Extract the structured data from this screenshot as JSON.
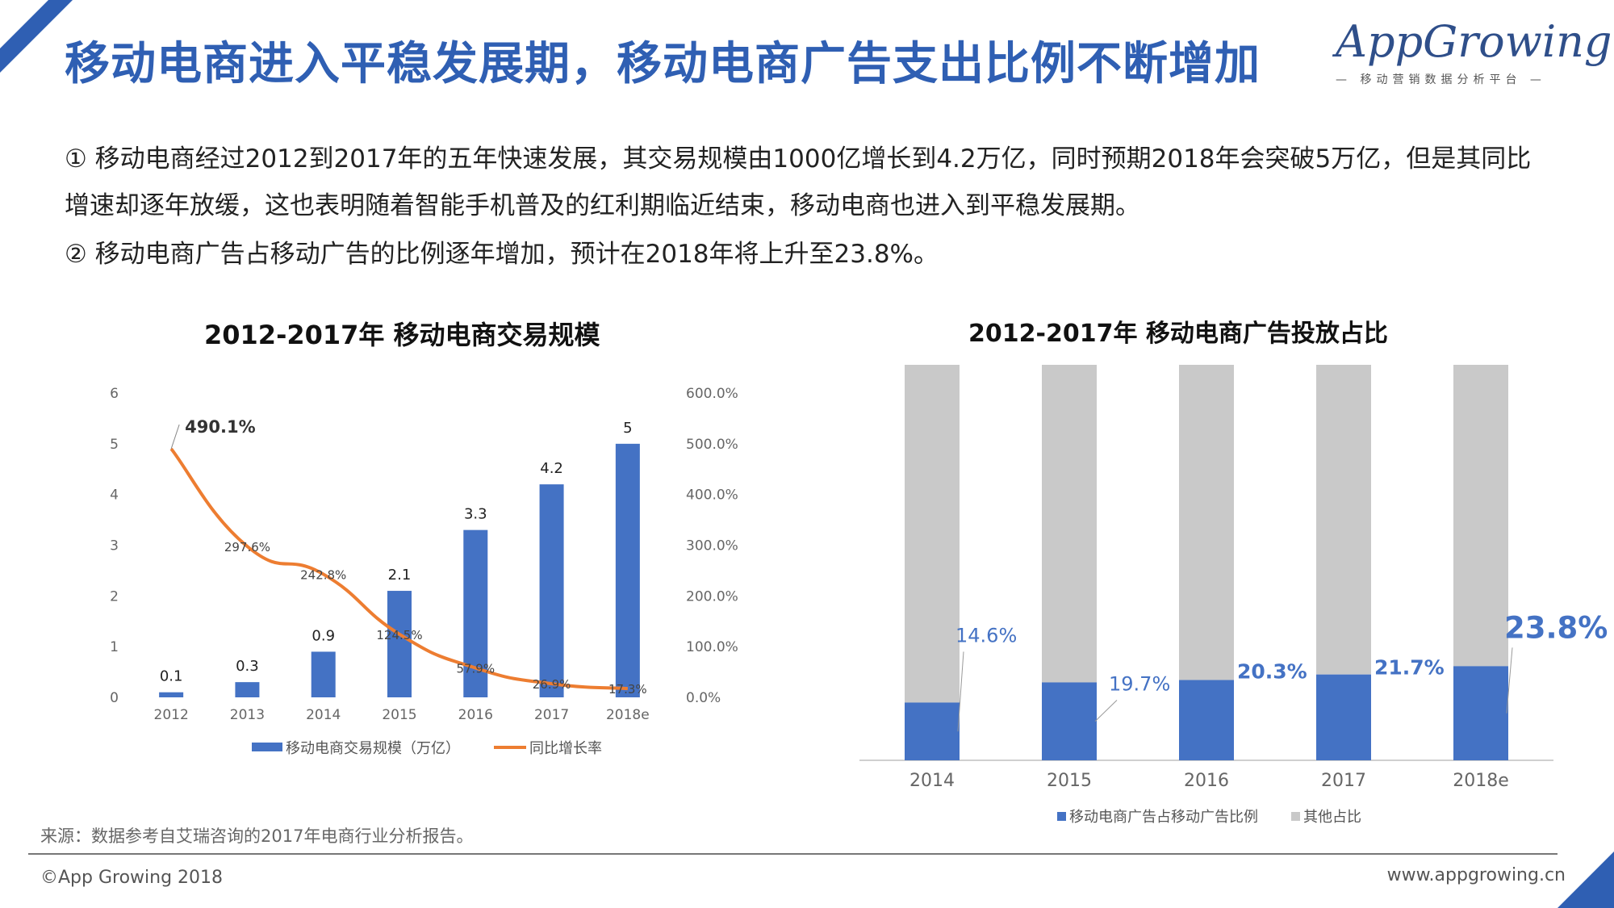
{
  "header": {
    "title": "移动电商进入平稳发展期，移动电商广告支出比例不断增加"
  },
  "logo": {
    "name": "AppGrowing",
    "tagline": "— 移动营销数据分析平台 —"
  },
  "body": {
    "para1": "① 移动电商经过2012到2017年的五年快速发展，其交易规模由1000亿增长到4.2万亿，同时预期2018年会突破5万亿，但是其同比增速却逐年放缓，这也表明随着智能手机普及的红利期临近结束，移动电商也进入到平稳发展期。",
    "para2": "② 移动电商广告占移动广告的比例逐年增加，预计在2018年将上升至23.8%。"
  },
  "chart_data": [
    {
      "type": "bar",
      "title": "2012-2017年 移动电商交易规模",
      "categories": [
        "2012",
        "2013",
        "2014",
        "2015",
        "2016",
        "2017",
        "2018e"
      ],
      "series": [
        {
          "name": "移动电商交易规模（万亿）",
          "type": "bar",
          "axis": "left",
          "values": [
            0.1,
            0.3,
            0.9,
            2.1,
            3.3,
            4.2,
            5
          ],
          "labels": [
            "0.1",
            "0.3",
            "0.9",
            "2.1",
            "3.3",
            "4.2",
            "5"
          ],
          "color": "#4472c4"
        },
        {
          "name": "同比增长率",
          "type": "line",
          "axis": "right",
          "values": [
            490.1,
            297.6,
            242.8,
            124.5,
            57.9,
            26.9,
            17.3
          ],
          "labels": [
            "490.1%",
            "297.6%",
            "242.8%",
            "124.5%",
            "57.9%",
            "26.9%",
            "17.3%"
          ],
          "color": "#ed7d31"
        }
      ],
      "y_left": {
        "min": 0,
        "max": 6,
        "ticks": [
          "0",
          "1",
          "2",
          "3",
          "4",
          "5",
          "6"
        ]
      },
      "y_right": {
        "min": 0,
        "max": 600,
        "ticks": [
          "0.0%",
          "100.0%",
          "200.0%",
          "300.0%",
          "400.0%",
          "500.0%",
          "600.0%"
        ]
      },
      "legend": "bottom",
      "grid": false
    },
    {
      "type": "bar",
      "stacked": true,
      "title": "2012-2017年 移动电商广告投放占比",
      "categories": [
        "2014",
        "2015",
        "2016",
        "2017",
        "2018e"
      ],
      "series": [
        {
          "name": "移动电商广告占移动广告比例",
          "values": [
            14.6,
            19.7,
            20.3,
            21.7,
            23.8
          ],
          "labels": [
            "14.6%",
            "19.7%",
            "20.3%",
            "21.7%",
            "23.8%"
          ],
          "color": "#4472c4"
        },
        {
          "name": "其他占比",
          "values": [
            85.4,
            80.3,
            79.7,
            78.3,
            76.2
          ],
          "color": "#c9c9c9"
        }
      ],
      "ylim": [
        0,
        100
      ],
      "legend": "bottom",
      "grid": false
    }
  ],
  "footer": {
    "source": "来源：数据参考自艾瑞咨询的2017年电商行业分析报告。",
    "copyright": "©App Growing 2018",
    "website": "www.appgrowing.cn"
  },
  "colors": {
    "accent": "#2f5fb3",
    "bar": "#4472c4",
    "line": "#ed7d31",
    "other": "#c9c9c9"
  }
}
